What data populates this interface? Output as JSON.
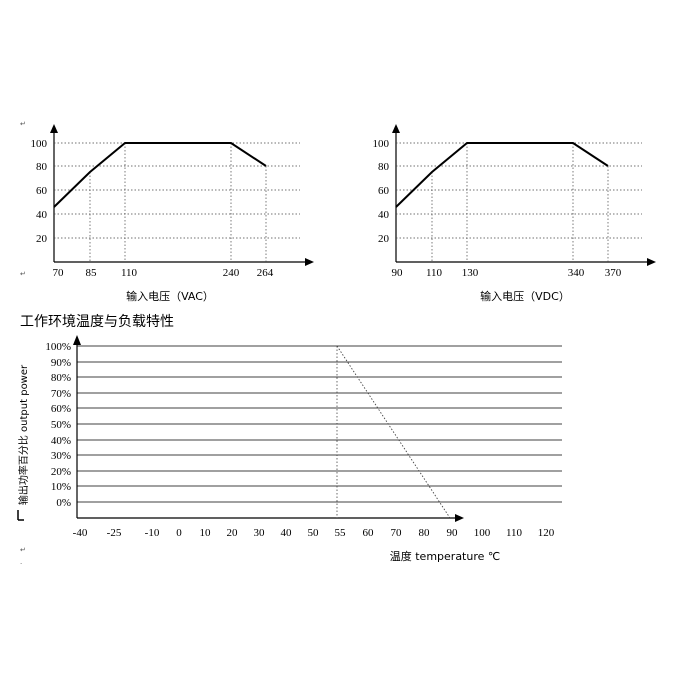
{
  "section_title": "工作环境温度与负载特性",
  "chart_data": [
    {
      "type": "line",
      "xlabel": "输入电压（VAC）",
      "ylabel": "",
      "y_ticks": [
        "100",
        "80",
        "60",
        "40",
        "20"
      ],
      "x_ticks": [
        "70",
        "85",
        "110",
        "240",
        "264"
      ],
      "x": [
        70,
        85,
        110,
        240,
        264
      ],
      "series": [
        {
          "values": [
            40,
            70,
            100,
            100,
            80
          ]
        }
      ],
      "grid": true
    },
    {
      "type": "line",
      "xlabel": "输入电压（VDC）",
      "ylabel": "",
      "y_ticks": [
        "100",
        "80",
        "60",
        "40",
        "20"
      ],
      "x_ticks": [
        "90",
        "110",
        "130",
        "340",
        "370"
      ],
      "x": [
        90,
        110,
        130,
        340,
        370
      ],
      "series": [
        {
          "values": [
            40,
            70,
            100,
            100,
            80
          ]
        }
      ],
      "grid": true
    },
    {
      "type": "line",
      "xlabel": "温度 temperature ℃",
      "ylabel": "输出功率百分比 output power",
      "y_ticks": [
        "100%",
        "90%",
        "80%",
        "70%",
        "60%",
        "50%",
        "40%",
        "30%",
        "20%",
        "10%",
        "0%"
      ],
      "x_ticks": [
        "-40",
        "-25",
        "-10",
        "0",
        "10",
        "20",
        "30",
        "40",
        "50",
        "55",
        "60",
        "70",
        "80",
        "90",
        "100",
        "110",
        "120"
      ],
      "x": [
        55,
        92
      ],
      "series": [
        {
          "values": [
            100,
            0
          ]
        }
      ],
      "grid": true
    }
  ]
}
